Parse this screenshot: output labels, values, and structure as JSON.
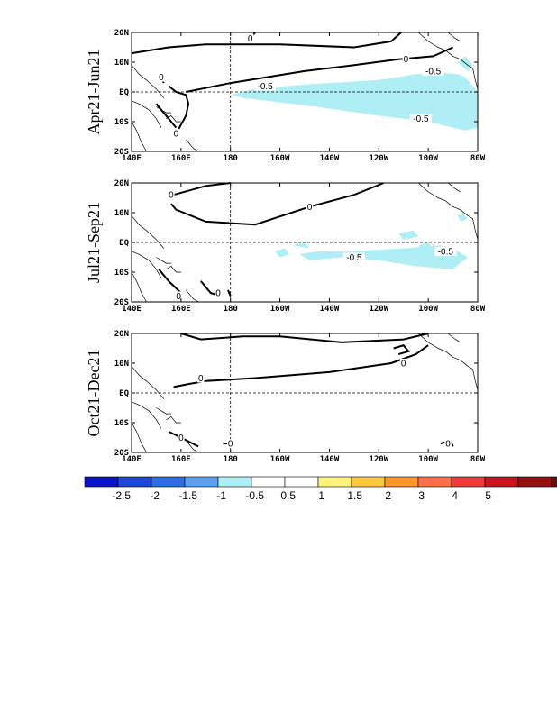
{
  "x_ticks": [
    "140E",
    "160E",
    "180",
    "160W",
    "140W",
    "120W",
    "100W",
    "80W"
  ],
  "y_ticks": [
    "20N",
    "10N",
    "EQ",
    "10S",
    "20S"
  ],
  "panels": [
    {
      "title": "Apr21-Jun21",
      "contour_labels": [
        {
          "text": "0",
          "lon": 188,
          "lat": 18
        },
        {
          "text": "0",
          "lon": 152,
          "lat": 5
        },
        {
          "text": "0",
          "lon": 251,
          "lat": 11
        },
        {
          "text": "0",
          "lon": 158,
          "lat": -14
        },
        {
          "text": "-0.5",
          "lon": 194,
          "lat": 2
        },
        {
          "text": "-0.5",
          "lon": 262,
          "lat": 7
        },
        {
          "text": "-0.5",
          "lon": 257,
          "lat": -9
        }
      ]
    },
    {
      "title": "Jul21-Sep21",
      "contour_labels": [
        {
          "text": "0",
          "lon": 156,
          "lat": 16
        },
        {
          "text": "0",
          "lon": 212,
          "lat": 12
        },
        {
          "text": "0",
          "lon": 175,
          "lat": -17
        },
        {
          "text": "0",
          "lon": 159,
          "lat": -18
        },
        {
          "text": "-0.5",
          "lon": 230,
          "lat": -5
        },
        {
          "text": "-0.5",
          "lon": 267,
          "lat": -3
        }
      ]
    },
    {
      "title": "Oct21-Dec21",
      "contour_labels": [
        {
          "text": "0",
          "lon": 168,
          "lat": 5
        },
        {
          "text": "0",
          "lon": 250,
          "lat": 10
        },
        {
          "text": "0",
          "lon": 160,
          "lat": -15
        },
        {
          "text": "0",
          "lon": 180,
          "lat": -17
        },
        {
          "text": "0",
          "lon": 268,
          "lat": -17
        }
      ]
    }
  ],
  "colorbar": {
    "colors": [
      "#0a14c8",
      "#1e46d8",
      "#2d6ee6",
      "#5aa0f0",
      "#aeeef4",
      "#ffffff",
      "#ffffff",
      "#fff27a",
      "#ffc83c",
      "#ff9628",
      "#ff6e46",
      "#ef3a3a",
      "#c8141e",
      "#961010",
      "#6e0a0a",
      "#461010"
    ],
    "labels": [
      "-2.5",
      "-2",
      "-1.5",
      "-1",
      "-0.5",
      "0.5",
      "1",
      "1.5",
      "2",
      "3",
      "4",
      "5"
    ]
  }
}
